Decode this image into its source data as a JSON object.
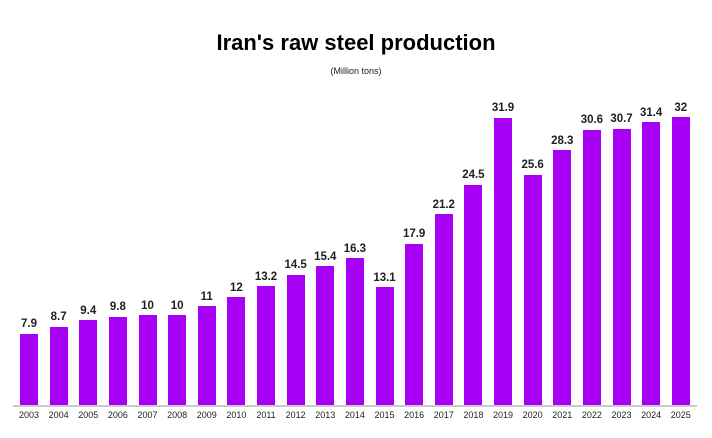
{
  "chart_data": {
    "type": "bar",
    "title": "Iran's raw steel production",
    "subtitle": "(Million tons)",
    "categories": [
      "2003",
      "2004",
      "2005",
      "2006",
      "2007",
      "2008",
      "2009",
      "2010",
      "2011",
      "2012",
      "2013",
      "2014",
      "2015",
      "2016",
      "2017",
      "2018",
      "2019",
      "2020",
      "2021",
      "2022",
      "2023",
      "2024",
      "2025"
    ],
    "values": [
      7.9,
      8.7,
      9.4,
      9.8,
      10,
      10,
      11,
      12,
      13.2,
      14.5,
      15.4,
      16.3,
      13.1,
      17.9,
      21.2,
      24.5,
      31.9,
      25.6,
      28.3,
      30.6,
      30.7,
      31.4,
      32
    ],
    "xlabel": "",
    "ylabel": "",
    "ylim": [
      0,
      35
    ],
    "grid": false,
    "legend": "none",
    "value_labels_shown": true,
    "bar_color": "#a800f5",
    "value_label_color": "#212121",
    "axis_label_color": "#222222",
    "axis_line_color": "#cbcbcb",
    "background_color": "#ffffff"
  }
}
